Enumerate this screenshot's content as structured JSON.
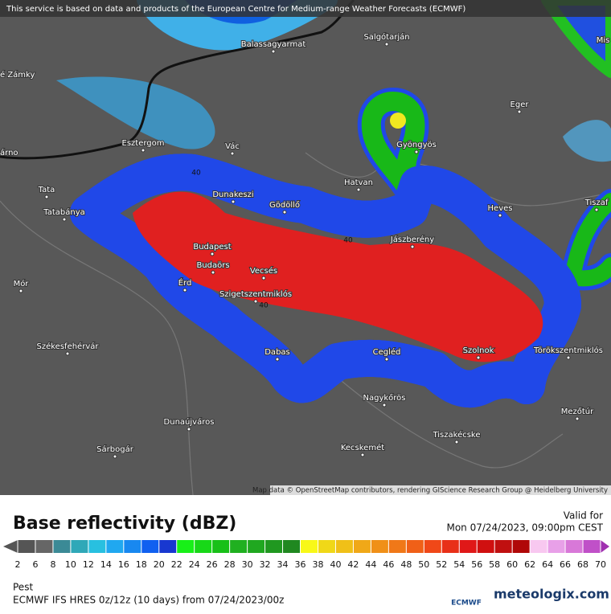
{
  "header": {
    "notice": "This service is based on data and products of the European Centre for Medium-range Weather Forecasts (ECMWF)"
  },
  "map": {
    "places": [
      "Balassagyarmat",
      "Salgótarján",
      "é Zámky",
      "Eger",
      "árno",
      "Esztergom",
      "Vác",
      "Gyöngyös",
      "Tata",
      "Hatvan",
      "Dunakeszi",
      "Gödöllő",
      "Heves",
      "Tiszaf",
      "Tatabánya",
      "Budapest",
      "Jászberény",
      "Budaörs",
      "Vecsés",
      "Mór",
      "Érd",
      "Szigetszentmiklós",
      "Székesfehérvár",
      "Dabas",
      "Cegléd",
      "Szolnok",
      "Törökszentmiklós",
      "Nagykőrös",
      "Mezőtúr",
      "Dunaújváros",
      "Sárbogár",
      "Tiszakécske",
      "Kecskemét",
      "Mis"
    ],
    "contour_labels": [
      "40",
      "40",
      "40"
    ],
    "attribution": "Map data © OpenStreetMap contributors, rendering GIScience Research Group @ Heidelberg University"
  },
  "legend": {
    "title": "Base reflectivity (dBZ)",
    "valid_label": "Valid for",
    "valid_time": "Mon 07/24/2023, 09:00pm CEST",
    "ticks": [
      2,
      6,
      8,
      10,
      12,
      14,
      16,
      18,
      20,
      22,
      24,
      26,
      28,
      30,
      32,
      34,
      36,
      38,
      40,
      42,
      44,
      46,
      48,
      50,
      52,
      54,
      56,
      58,
      60,
      62,
      64,
      66,
      68,
      70
    ]
  },
  "footer": {
    "region": "Pest",
    "model": "ECMWF IFS HRES 0z/12z (10 days) from 07/24/2023/00z",
    "logos": [
      "ECMWF",
      "meteologix.com"
    ]
  }
}
